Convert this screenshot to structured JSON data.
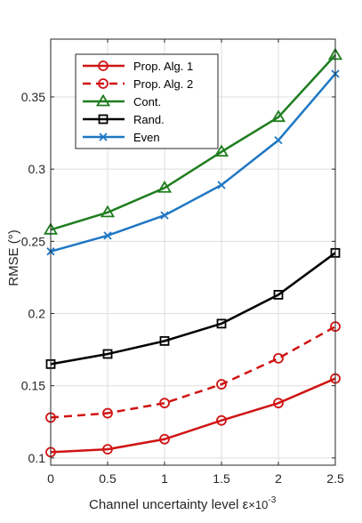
{
  "chart_data": {
    "type": "line",
    "title": "",
    "xlabel": "Channel uncertainty level ε",
    "x_exponent": "×10",
    "x_exponent_power": "-3",
    "ylabel": "RMSE (°)",
    "xlim": [
      0,
      2.5
    ],
    "ylim": [
      0.095,
      0.39
    ],
    "x_ticks": [
      0,
      0.5,
      1,
      1.5,
      2,
      2.5
    ],
    "x_tick_labels": [
      "0",
      "0.5",
      "1",
      "1.5",
      "2",
      "2.5"
    ],
    "y_ticks": [
      0.1,
      0.15,
      0.2,
      0.25,
      0.3,
      0.35
    ],
    "y_tick_labels": [
      "0.1",
      "0.15",
      "0.2",
      "0.25",
      "0.3",
      "0.35"
    ],
    "grid": true,
    "legend_position": "top-left",
    "x": [
      0,
      0.5,
      1,
      1.5,
      2,
      2.5
    ],
    "series": [
      {
        "name": "Prop. Alg. 1",
        "color": "#d01414",
        "dash": "solid",
        "marker": "circle",
        "values": [
          0.104,
          0.106,
          0.113,
          0.126,
          0.138,
          0.155
        ]
      },
      {
        "name": "Prop. Alg. 2",
        "color": "#d01414",
        "dash": "dashed",
        "marker": "circle",
        "values": [
          0.128,
          0.131,
          0.138,
          0.151,
          0.169,
          0.191
        ]
      },
      {
        "name": "Cont.",
        "color": "#1e7d1e",
        "dash": "solid",
        "marker": "triangle",
        "values": [
          0.258,
          0.27,
          0.287,
          0.312,
          0.336,
          0.379
        ]
      },
      {
        "name": "Rand.",
        "color": "#000000",
        "dash": "solid",
        "marker": "square",
        "values": [
          0.165,
          0.172,
          0.181,
          0.193,
          0.213,
          0.242
        ]
      },
      {
        "name": "Even",
        "color": "#1f77c4",
        "dash": "solid",
        "marker": "x",
        "values": [
          0.243,
          0.254,
          0.268,
          0.289,
          0.32,
          0.366
        ]
      }
    ]
  }
}
